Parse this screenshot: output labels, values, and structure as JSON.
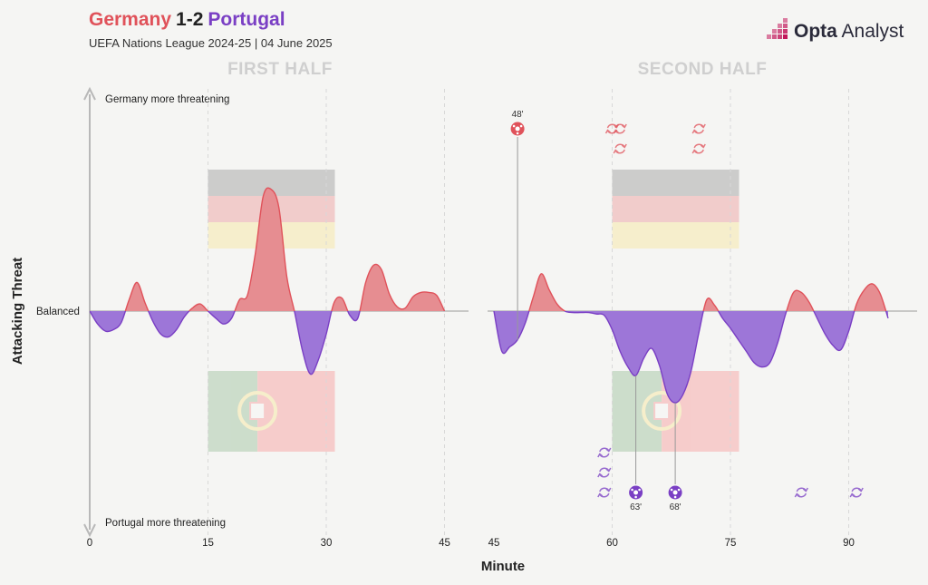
{
  "header": {
    "home_team": "Germany",
    "score": "1-2",
    "away_team": "Portugal",
    "subtitle": "UEFA Nations League 2024-25 | 04 June 2025",
    "brand_bold": "Opta",
    "brand_light": " Analyst"
  },
  "colors": {
    "home": "#e0525a",
    "home_fill": "#e68d91",
    "away": "#7a3fc4",
    "away_fill": "#9d76d8",
    "grid": "#d8d8d8",
    "background": "#f5f5f3"
  },
  "chart_data": {
    "type": "area",
    "title": "Germany 1-2 Portugal",
    "xlabel": "Minute",
    "ylabel": "Attacking Threat",
    "y_top_label": "Germany more threatening",
    "y_mid_label": "Balanced",
    "y_bottom_label": "Portugal more threatening",
    "ylim": [
      -1,
      1
    ],
    "positive_series": "Germany",
    "negative_series": "Portugal",
    "halves": [
      {
        "title": "FIRST HALF",
        "xlim": [
          0,
          48
        ],
        "ticks": [
          0,
          15,
          30,
          45
        ],
        "points": [
          [
            0,
            0
          ],
          [
            1,
            -0.09
          ],
          [
            2,
            -0.14
          ],
          [
            3,
            -0.13
          ],
          [
            4,
            -0.08
          ],
          [
            5,
            0.08
          ],
          [
            6,
            0.2
          ],
          [
            7,
            0.06
          ],
          [
            8,
            -0.07
          ],
          [
            9,
            -0.16
          ],
          [
            10,
            -0.18
          ],
          [
            11,
            -0.13
          ],
          [
            12,
            -0.04
          ],
          [
            13,
            0.02
          ],
          [
            14,
            0.05
          ],
          [
            15,
            0.0
          ],
          [
            16,
            -0.05
          ],
          [
            17,
            -0.09
          ],
          [
            18,
            -0.05
          ],
          [
            19,
            0.08
          ],
          [
            20,
            0.11
          ],
          [
            21,
            0.4
          ],
          [
            22,
            0.8
          ],
          [
            23,
            0.85
          ],
          [
            24,
            0.72
          ],
          [
            25,
            0.24
          ],
          [
            26,
            -0.01
          ],
          [
            27,
            -0.28
          ],
          [
            28,
            -0.44
          ],
          [
            29,
            -0.34
          ],
          [
            30,
            -0.16
          ],
          [
            31,
            0.06
          ],
          [
            32,
            0.09
          ],
          [
            33,
            -0.03
          ],
          [
            34,
            -0.05
          ],
          [
            35,
            0.2
          ],
          [
            36,
            0.32
          ],
          [
            37,
            0.29
          ],
          [
            38,
            0.12
          ],
          [
            39,
            0.03
          ],
          [
            40,
            0.02
          ],
          [
            41,
            0.1
          ],
          [
            42,
            0.13
          ],
          [
            43,
            0.13
          ],
          [
            44,
            0.11
          ],
          [
            45,
            0.0
          ]
        ]
      },
      {
        "title": "SECOND HALF",
        "xlim": [
          45,
          98
        ],
        "ticks": [
          45,
          60,
          75,
          90
        ],
        "points": [
          [
            45,
            0
          ],
          [
            46,
            -0.28
          ],
          [
            47,
            -0.25
          ],
          [
            48,
            -0.2
          ],
          [
            49,
            -0.08
          ],
          [
            50,
            0.1
          ],
          [
            51,
            0.26
          ],
          [
            52,
            0.15
          ],
          [
            53,
            0.05
          ],
          [
            54,
            0.0
          ],
          [
            55,
            -0.01
          ],
          [
            56,
            -0.01
          ],
          [
            57,
            -0.01
          ],
          [
            58,
            -0.02
          ],
          [
            59,
            -0.03
          ],
          [
            60,
            -0.13
          ],
          [
            61,
            -0.28
          ],
          [
            62,
            -0.39
          ],
          [
            63,
            -0.45
          ],
          [
            64,
            -0.33
          ],
          [
            65,
            -0.26
          ],
          [
            66,
            -0.38
          ],
          [
            67,
            -0.58
          ],
          [
            68,
            -0.64
          ],
          [
            69,
            -0.58
          ],
          [
            70,
            -0.42
          ],
          [
            71,
            -0.15
          ],
          [
            72,
            0.08
          ],
          [
            73,
            0.04
          ],
          [
            74,
            -0.05
          ],
          [
            75,
            -0.12
          ],
          [
            76,
            -0.2
          ],
          [
            77,
            -0.28
          ],
          [
            78,
            -0.36
          ],
          [
            79,
            -0.39
          ],
          [
            80,
            -0.36
          ],
          [
            81,
            -0.22
          ],
          [
            82,
            -0.02
          ],
          [
            83,
            0.13
          ],
          [
            84,
            0.13
          ],
          [
            85,
            0.06
          ],
          [
            86,
            -0.05
          ],
          [
            87,
            -0.16
          ],
          [
            88,
            -0.24
          ],
          [
            89,
            -0.27
          ],
          [
            90,
            -0.14
          ],
          [
            91,
            0.05
          ],
          [
            92,
            0.15
          ],
          [
            93,
            0.19
          ],
          [
            94,
            0.12
          ],
          [
            95,
            -0.05
          ]
        ]
      }
    ],
    "goals": [
      {
        "team": "Germany",
        "minute": 48,
        "label": "48'"
      },
      {
        "team": "Portugal",
        "minute": 63,
        "label": "63'"
      },
      {
        "team": "Portugal",
        "minute": 68,
        "label": "68'"
      }
    ],
    "substitutions": [
      {
        "team": "Germany",
        "minute": 60,
        "slot": 1
      },
      {
        "team": "Germany",
        "minute": 61,
        "slot": 1
      },
      {
        "team": "Germany",
        "minute": 61,
        "slot": 2
      },
      {
        "team": "Germany",
        "minute": 71,
        "slot": 1
      },
      {
        "team": "Germany",
        "minute": 71,
        "slot": 2
      },
      {
        "team": "Portugal",
        "minute": 59,
        "slot": 1
      },
      {
        "team": "Portugal",
        "minute": 59,
        "slot": 2
      },
      {
        "team": "Portugal",
        "minute": 59,
        "slot": 3
      },
      {
        "team": "Portugal",
        "minute": 84,
        "slot": 1
      },
      {
        "team": "Portugal",
        "minute": 91,
        "slot": 1
      }
    ]
  }
}
